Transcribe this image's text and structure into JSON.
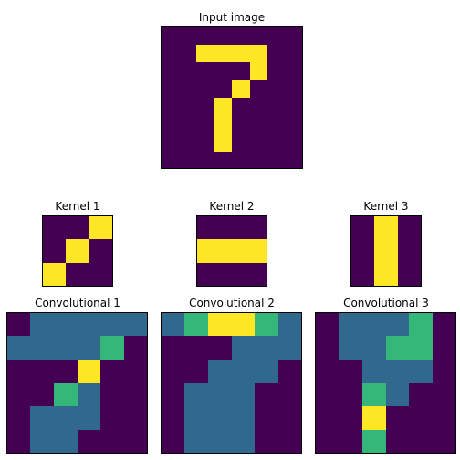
{
  "colors": {
    "0": "#440154",
    "1": "#31688e",
    "2": "#35b779",
    "3": "#fde725",
    "frame": "#000000"
  },
  "panels": {
    "input": {
      "title": "Input image",
      "grid": [
        [
          0,
          0,
          0,
          0,
          0,
          0,
          0,
          0
        ],
        [
          0,
          0,
          1,
          1,
          1,
          1,
          0,
          0
        ],
        [
          0,
          0,
          0,
          0,
          0,
          1,
          0,
          0
        ],
        [
          0,
          0,
          0,
          0,
          1,
          0,
          0,
          0
        ],
        [
          0,
          0,
          0,
          1,
          0,
          0,
          0,
          0
        ],
        [
          0,
          0,
          0,
          1,
          0,
          0,
          0,
          0
        ],
        [
          0,
          0,
          0,
          1,
          0,
          0,
          0,
          0
        ],
        [
          0,
          0,
          0,
          0,
          0,
          0,
          0,
          0
        ]
      ],
      "palette": [
        "0",
        "3"
      ]
    },
    "kernel1": {
      "title": "Kernel 1",
      "grid": [
        [
          0,
          0,
          1
        ],
        [
          0,
          1,
          0
        ],
        [
          1,
          0,
          0
        ]
      ],
      "palette": [
        "0",
        "3"
      ]
    },
    "kernel2": {
      "title": "Kernel 2",
      "grid": [
        [
          0,
          0,
          0
        ],
        [
          1,
          1,
          1
        ],
        [
          0,
          0,
          0
        ]
      ],
      "palette": [
        "0",
        "3"
      ]
    },
    "kernel3": {
      "title": "Kernel 3",
      "grid": [
        [
          0,
          1,
          0
        ],
        [
          0,
          1,
          0
        ],
        [
          0,
          1,
          0
        ]
      ],
      "palette": [
        "0",
        "3"
      ]
    },
    "conv1": {
      "title": "Convolutional 1",
      "grid": [
        [
          0,
          1,
          1,
          1,
          1,
          1
        ],
        [
          1,
          1,
          1,
          1,
          2,
          0
        ],
        [
          0,
          0,
          0,
          3,
          0,
          0
        ],
        [
          0,
          0,
          2,
          1,
          0,
          0
        ],
        [
          0,
          1,
          1,
          1,
          0,
          0
        ],
        [
          0,
          1,
          1,
          0,
          0,
          0
        ]
      ],
      "palette": [
        "0",
        "1",
        "2",
        "3"
      ]
    },
    "conv2": {
      "title": "Convolutional 2",
      "grid": [
        [
          1,
          2,
          3,
          3,
          2,
          1
        ],
        [
          0,
          0,
          0,
          1,
          1,
          1
        ],
        [
          0,
          0,
          1,
          1,
          1,
          0
        ],
        [
          0,
          1,
          1,
          1,
          0,
          0
        ],
        [
          0,
          1,
          1,
          1,
          0,
          0
        ],
        [
          0,
          1,
          1,
          1,
          0,
          0
        ]
      ],
      "palette": [
        "0",
        "1",
        "2",
        "3"
      ]
    },
    "conv3": {
      "title": "Convolutional 3",
      "grid": [
        [
          0,
          1,
          1,
          1,
          2,
          0
        ],
        [
          0,
          1,
          1,
          2,
          2,
          0
        ],
        [
          0,
          0,
          1,
          1,
          1,
          0
        ],
        [
          0,
          0,
          2,
          1,
          0,
          0
        ],
        [
          0,
          0,
          3,
          0,
          0,
          0
        ],
        [
          0,
          0,
          2,
          0,
          0,
          0
        ]
      ],
      "palette": [
        "0",
        "1",
        "2",
        "3"
      ]
    }
  }
}
